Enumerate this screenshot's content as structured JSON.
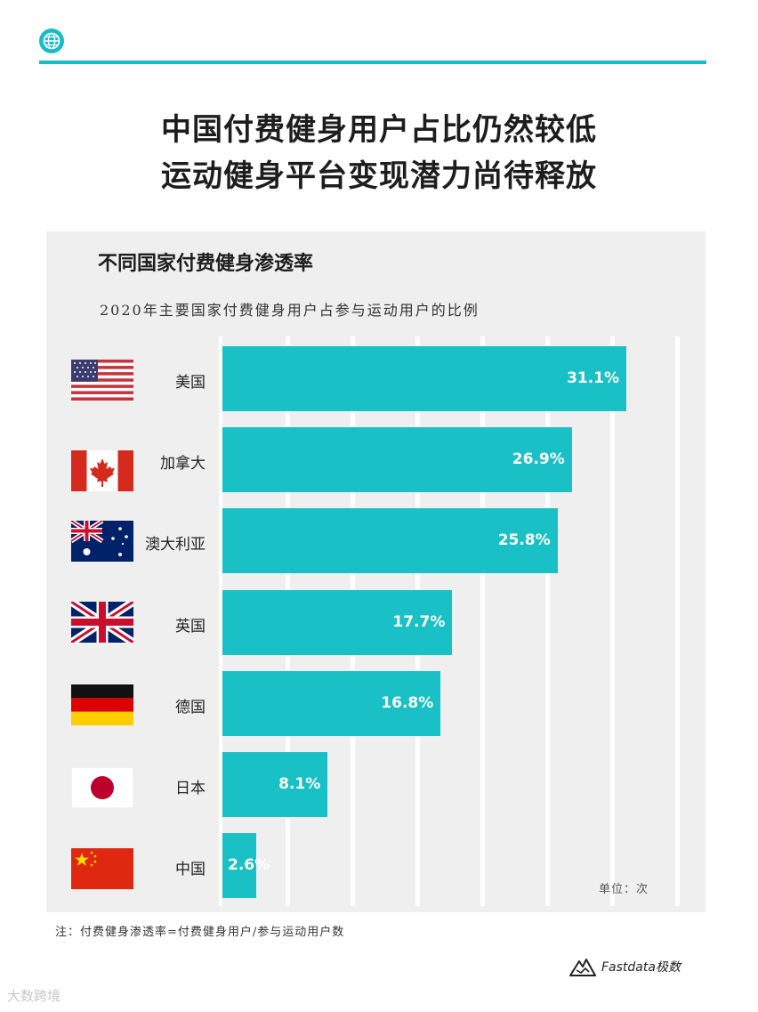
{
  "header": {
    "headline_line1": "中国付费健身用户占比仍然较低",
    "headline_line2": "运动健身平台变现潜力尚待释放",
    "accent_color": "#19bcc4",
    "icon": "globe-icon"
  },
  "chart_data": {
    "type": "bar",
    "orientation": "horizontal",
    "title": "不同国家付费健身渗透率",
    "subtitle": "2020年主要国家付费健身用户占参与运动用户的比例",
    "categories": [
      "美国",
      "加拿大",
      "澳大利亚",
      "英国",
      "德国",
      "日本",
      "中国"
    ],
    "values": [
      31.1,
      26.9,
      25.8,
      17.7,
      16.8,
      8.1,
      2.6
    ],
    "value_labels": [
      "31.1%",
      "26.9%",
      "25.8%",
      "17.7%",
      "16.8%",
      "8.1%",
      "2.6%"
    ],
    "flags": [
      "us-flag-icon",
      "canada-flag-icon",
      "australia-flag-icon",
      "uk-flag-icon",
      "germany-flag-icon",
      "japan-flag-icon",
      "china-flag-icon"
    ],
    "xlim": [
      0,
      35
    ],
    "grid": true,
    "bar_color": "#19c0c5",
    "unit_label": "单位：次"
  },
  "footer": {
    "note": "注：付费健身渗透率=付费健身用户/参与运动用户数",
    "brand": "Fastdata极数",
    "watermark": "大数跨境"
  }
}
